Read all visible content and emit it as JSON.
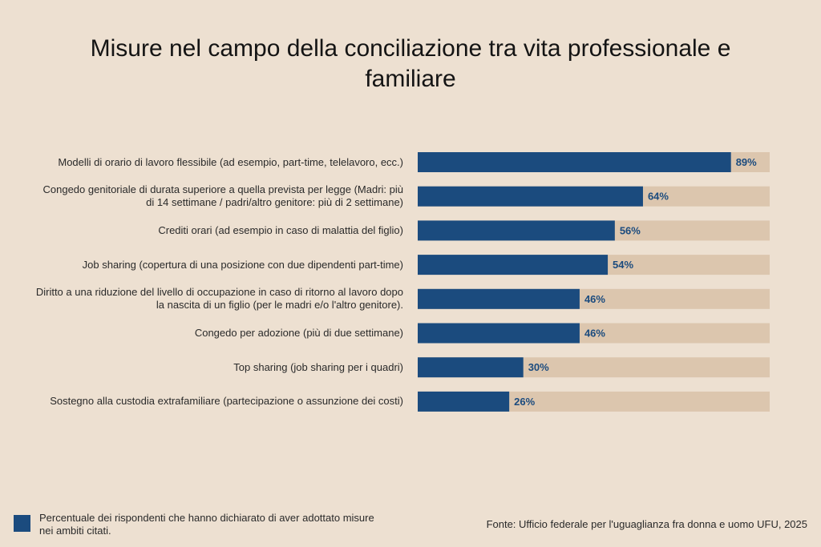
{
  "chart_data": {
    "type": "bar",
    "orientation": "horizontal",
    "title": "Misure nel campo della conciliazione tra vita professionale e familiare",
    "categories": [
      "Modelli di orario di lavoro flessibile (ad esempio, part-time, telelavoro, ecc.)",
      "Congedo genitoriale di durata superiore a quella prevista per legge (Madri: più di 14 settimane / padri/altro genitore: più di 2 settimane)",
      "Crediti orari (ad esempio in caso di malattia del figlio)",
      "Job sharing (copertura di una posizione con due dipendenti part-time)",
      "Diritto a una riduzione del livello di occupazione in caso di ritorno al lavoro dopo la nascita di un figlio (per le madri e/o l'altro genitore).",
      "Congedo per adozione (più di due settimane)",
      "Top sharing (job sharing per i quadri)",
      "Sostegno alla custodia extrafamiliare (partecipazione o assunzione dei costi)"
    ],
    "values": [
      89,
      64,
      56,
      54,
      46,
      46,
      30,
      26
    ],
    "value_labels": [
      "89%",
      "64%",
      "56%",
      "54%",
      "46%",
      "46%",
      "30%",
      "26%"
    ],
    "xlim": [
      0,
      100
    ],
    "legend": "Percentuale dei rispondenti che hanno dichiarato di aver adottato misure nei ambiti citati.",
    "legend_position": "bottom-left",
    "source": "Fonte: Ufficio federale per l'uguaglianza fra donna e uomo UFU, 2025",
    "grid": false,
    "colors": {
      "bar": "#1b4b7e",
      "track": "#dcc6ae",
      "label": "#1b4b7e",
      "background": "#ede0d1"
    }
  }
}
